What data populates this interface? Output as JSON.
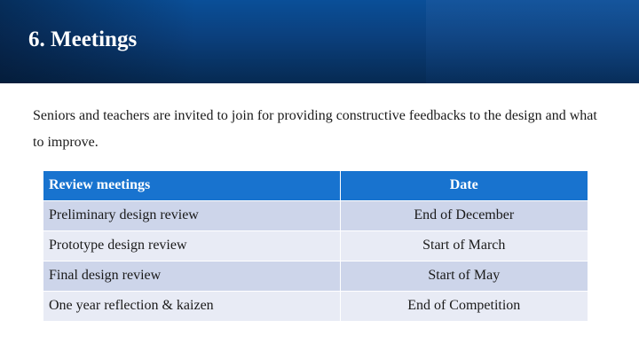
{
  "slide": {
    "title": "6. Meetings",
    "intro": "Seniors and teachers are invited to join for providing constructive feedbacks to the design and what to improve."
  },
  "table": {
    "headers": [
      "Review meetings",
      "Date"
    ],
    "rows": [
      [
        "Preliminary design review",
        "End of December"
      ],
      [
        "Prototype design review",
        "Start of March"
      ],
      [
        "Final design review",
        "Start of May"
      ],
      [
        "One year reflection & kaizen",
        "End of Competition"
      ]
    ]
  },
  "colors": {
    "header_band": "#0b3f7c",
    "table_header": "#1873cf",
    "row_dark": "#cdd5ea",
    "row_light": "#e8ebf5"
  }
}
